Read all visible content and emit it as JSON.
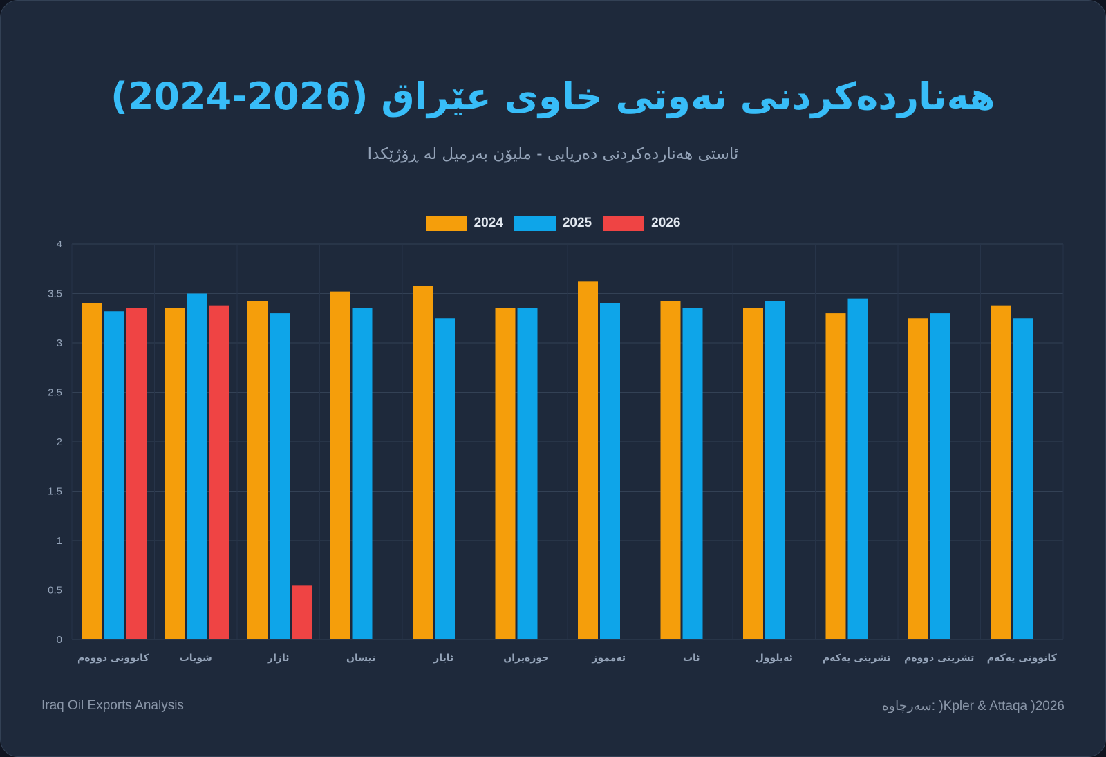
{
  "title": "هەناردەکردنی نەوتی خاوی عێراق (2026-2024)",
  "subtitle": "ئاستی هەناردەکردنی دەریایی - ملیۆن بەرمیل لە ڕۆژێکدا",
  "footer": {
    "left": "Iraq Oil Exports Analysis",
    "right": "سەرچاوە: )Kpler & Attaqa )2026"
  },
  "chart_data": {
    "type": "bar",
    "title": "هەناردەکردنی نەوتی خاوی عێراق (2026-2024)",
    "ylabel": "",
    "xlabel": "",
    "ylim": [
      0,
      4
    ],
    "yticks": [
      0,
      0.5,
      1,
      1.5,
      2,
      2.5,
      3,
      3.5,
      4
    ],
    "legend_position": "top-center",
    "categories": [
      "کانوونی دووەم",
      "شوبات",
      "ئازار",
      "نیسان",
      "ئایار",
      "حوزەیران",
      "تەمموز",
      "ئاب",
      "ئەیلوول",
      "تشرینی یەکەم",
      "تشرینی دووەم",
      "کانوونی یەکەم"
    ],
    "series": [
      {
        "name": "2024",
        "color": "#f59e0b",
        "values": [
          3.4,
          3.35,
          3.42,
          3.52,
          3.58,
          3.35,
          3.62,
          3.42,
          3.35,
          3.3,
          3.25,
          3.38
        ]
      },
      {
        "name": "2025",
        "color": "#0ea5e9",
        "values": [
          3.32,
          3.5,
          3.3,
          3.35,
          3.25,
          3.35,
          3.4,
          3.35,
          3.42,
          3.45,
          3.3,
          3.25
        ]
      },
      {
        "name": "2026",
        "color": "#ef4444",
        "values": [
          3.35,
          3.38,
          0.55,
          null,
          null,
          null,
          null,
          null,
          null,
          null,
          null,
          null
        ]
      }
    ]
  }
}
